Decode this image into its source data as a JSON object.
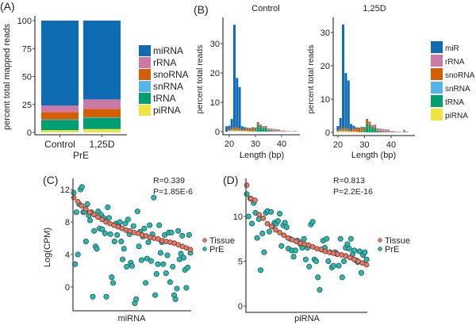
{
  "colors": {
    "miRNA": "#0f6cb3",
    "rRNA": "#cc79a7",
    "snoRNA": "#d55e00",
    "snRNA": "#56b4e9",
    "tRNA": "#009e73",
    "piRNA": "#f0e442",
    "Tissue": "#e07a68",
    "PrE": "#2bb6ae"
  },
  "chart_data": [
    {
      "panel": "(A)",
      "type": "bar",
      "stacked": true,
      "categories": [
        "Control",
        "1,25D"
      ],
      "xlabel": "PrE",
      "ylabel": "percent total mapped reads",
      "ylim": [
        0,
        100
      ],
      "yticks": [
        "0",
        "25",
        "50",
        "75",
        "100"
      ],
      "legend_position": "right",
      "series": [
        {
          "name": "piRNA",
          "values": [
            2,
            3
          ]
        },
        {
          "name": "tRNA",
          "values": [
            9,
            10
          ]
        },
        {
          "name": "snRNA",
          "values": [
            0.5,
            0.5
          ]
        },
        {
          "name": "snoRNA",
          "values": [
            6.5,
            7.5
          ]
        },
        {
          "name": "rRNA",
          "values": [
            6,
            8.5
          ]
        },
        {
          "name": "miRNA",
          "values": [
            76,
            70.5
          ]
        }
      ],
      "legend_order": [
        "miRNA",
        "rRNA",
        "snoRNA",
        "snRNA",
        "tRNA",
        "piRNA"
      ]
    },
    {
      "panel": "(B)",
      "title": "Control",
      "type": "bar",
      "stacked": true,
      "xlabel": "Length (bp)",
      "ylabel": "percent total reads",
      "xticks": [
        "20",
        "30",
        "40"
      ],
      "yticks": [
        "0",
        "10",
        "20",
        "30"
      ],
      "x": [
        19,
        20,
        21,
        22,
        23,
        24,
        25,
        26,
        27,
        28,
        29,
        30,
        31,
        32,
        33,
        34,
        35,
        36,
        37,
        38,
        39,
        40,
        41,
        42,
        43,
        44,
        45,
        46
      ],
      "series": [
        {
          "name": "piRNA",
          "values": [
            0,
            0.2,
            0.3,
            0.3,
            0.3,
            0.2,
            0.2,
            0.2,
            0.2,
            0.1,
            0.1,
            0.1,
            0,
            0,
            0,
            0,
            0,
            0,
            0,
            0,
            0,
            0,
            0,
            0,
            0,
            0,
            0,
            0
          ]
        },
        {
          "name": "tRNA",
          "values": [
            0,
            0,
            0,
            0,
            0,
            0,
            0,
            0,
            0,
            0,
            0.3,
            0.5,
            2.2,
            1.5,
            1,
            1.2,
            0.3,
            0.2,
            0.1,
            0.1,
            0.1,
            0,
            0,
            0,
            0,
            0,
            0,
            0
          ]
        },
        {
          "name": "snRNA",
          "values": [
            0,
            0.2,
            0.3,
            0.3,
            0.2,
            0.2,
            0.1,
            0.1,
            0,
            0,
            0,
            0,
            0,
            0,
            0,
            0,
            0,
            0,
            0,
            0,
            0,
            0,
            0,
            0,
            0,
            0,
            0,
            0
          ]
        },
        {
          "name": "snoRNA",
          "values": [
            0,
            0.3,
            0.5,
            0.8,
            0.8,
            0.6,
            0.3,
            0.6,
            0.8,
            0.8,
            0.9,
            0.6,
            0.8,
            0.5,
            0.4,
            0.3,
            0.3,
            0.2,
            0.2,
            0.1,
            0.1,
            0.1,
            0.1,
            0,
            0,
            0,
            0,
            0
          ]
        },
        {
          "name": "rRNA",
          "values": [
            0,
            0,
            0,
            0,
            0,
            0,
            0,
            0,
            0,
            0,
            0,
            0,
            0,
            0.2,
            0.2,
            0.2,
            0.4,
            0.5,
            0.5,
            0.5,
            0.4,
            0.3,
            0.3,
            0.2,
            0.2,
            0.1,
            0.3,
            0.1
          ]
        },
        {
          "name": "miR",
          "values": [
            1.8,
            1.3,
            3.2,
            35,
            17,
            14.2,
            1.2,
            0.6,
            0.3,
            0.3,
            0.2,
            0.2,
            0.2,
            0.2,
            0.2,
            0.2,
            0.1,
            0.1,
            0.1,
            0.1,
            0.1,
            0,
            0,
            0,
            0,
            0,
            0,
            0
          ]
        }
      ]
    },
    {
      "panel": "",
      "title": "1,25D",
      "type": "bar",
      "stacked": true,
      "xlabel": "Length (bp)",
      "ylabel": "percent total reads",
      "xticks": [
        "20",
        "30",
        "40"
      ],
      "yticks": [
        "0",
        "10",
        "20",
        "30"
      ],
      "legend_position": "right",
      "legend_order": [
        "miR",
        "rRNA",
        "snoRNA",
        "snRNA",
        "tRNA",
        "piRNA"
      ],
      "x": [
        19,
        20,
        21,
        22,
        23,
        24,
        25,
        26,
        27,
        28,
        29,
        30,
        31,
        32,
        33,
        34,
        35,
        36,
        37,
        38,
        39,
        40,
        41,
        42,
        43,
        44,
        45,
        46
      ],
      "series": [
        {
          "name": "piRNA",
          "values": [
            0,
            0.2,
            0.3,
            0.3,
            0.3,
            0.2,
            0.2,
            0.2,
            0.2,
            0.1,
            0.1,
            0.1,
            0,
            0,
            0,
            0,
            0,
            0,
            0,
            0,
            0,
            0,
            0,
            0,
            0,
            0,
            0,
            0
          ]
        },
        {
          "name": "tRNA",
          "values": [
            0,
            0,
            0,
            0,
            0,
            0,
            0,
            0,
            0,
            0,
            0.4,
            0.6,
            2.6,
            2,
            1.2,
            1.5,
            0.3,
            0.2,
            0.1,
            0.1,
            0.1,
            0,
            0,
            0,
            0,
            0,
            0,
            0
          ]
        },
        {
          "name": "snRNA",
          "values": [
            0,
            0.2,
            0.3,
            0.3,
            0.2,
            0.2,
            0.1,
            0.1,
            0,
            0,
            0,
            0,
            0,
            0,
            0,
            0,
            0,
            0,
            0,
            0,
            0,
            0,
            0,
            0,
            0,
            0,
            0,
            0
          ]
        },
        {
          "name": "snoRNA",
          "values": [
            0,
            0.3,
            0.5,
            0.8,
            0.8,
            0.6,
            0.4,
            0.8,
            1,
            1,
            1,
            0.7,
            1.2,
            0.8,
            0.5,
            0.4,
            0.3,
            0.2,
            0.2,
            0.1,
            0.1,
            0.1,
            0.1,
            0,
            0,
            0,
            0,
            0
          ]
        },
        {
          "name": "rRNA",
          "values": [
            0,
            0,
            0,
            0,
            0,
            0,
            0,
            0,
            0,
            0,
            0,
            0,
            0,
            0.2,
            0.2,
            0.2,
            0.5,
            0.6,
            0.6,
            0.6,
            0.5,
            0.3,
            0.3,
            0.2,
            0.2,
            0.1,
            0.8,
            0.3
          ]
        },
        {
          "name": "miR",
          "values": [
            0,
            1.2,
            3.2,
            31,
            16.5,
            14.6,
            1.8,
            0.9,
            0.3,
            0.3,
            0.2,
            0.2,
            0.2,
            0.2,
            0.2,
            0.2,
            0.1,
            0.1,
            0.1,
            0.1,
            0.1,
            0,
            0,
            0,
            0,
            0,
            0,
            0
          ]
        }
      ]
    },
    {
      "panel": "(C)",
      "type": "scatter",
      "xlabel": "miRNA",
      "ylabel": "Log(CPM)",
      "ylim": [
        -2.9,
        13.4
      ],
      "yticks": [
        "0",
        "4",
        "8",
        "12"
      ],
      "annotation": [
        "R=0.339",
        "P=1.85E-6"
      ],
      "legend_position": "right",
      "series": [
        {
          "name": "Tissue",
          "y": [
            11,
            10.5,
            10,
            9.6,
            9.2,
            8.9,
            8.6,
            8.3,
            8.0,
            7.8,
            7.6,
            7.4,
            7.2,
            7.0,
            6.9,
            6.7,
            6.6,
            6.4,
            6.3,
            6.1,
            6.0,
            5.9,
            5.7,
            5.6,
            5.5,
            5.4,
            5.2,
            5.0,
            4.8,
            4.6
          ]
        },
        {
          "name": "PrE",
          "y": [
            11.6,
            2.8,
            9.2,
            4,
            10.2,
            12,
            12.3,
            9.2,
            9.3,
            5.6,
            10.2,
            8.8,
            8.2,
            9.2,
            -1.2,
            6.9,
            5,
            4.7,
            9.3,
            7.2,
            8.9,
            7.1,
            8.5,
            6.6,
            -1.2,
            9.8,
            8.5,
            6.5,
            1.2,
            0.5,
            5.6,
            7.8,
            6.4,
            7.6,
            8,
            5.6,
            3.4,
            4.7,
            7.8,
            2.5,
            8.3,
            6.5,
            3,
            2.6,
            7.5,
            -2,
            -1.5,
            9.3,
            5,
            6.8,
            3.3,
            6.2,
            7.2,
            0.5,
            3.5,
            5.5,
            7.6,
            3.2,
            6.5,
            11,
            -1,
            1.6,
            2.8,
            7.6,
            4.2,
            5.5,
            2.8,
            6.4,
            1.7,
            3.9,
            6.7,
            0.6,
            6.7,
            2.5,
            -1,
            -1.5,
            -0.2,
            6.9,
            3.4,
            4.1,
            6.3,
            3.6,
            2.1,
            -0.1,
            2.4,
            6.4,
            4.2
          ]
        }
      ]
    },
    {
      "panel": "(D)",
      "type": "scatter",
      "xlabel": "piRNA",
      "ylabel": "",
      "ylim": [
        -0.7,
        13.8
      ],
      "yticks": [
        "0",
        "5",
        "10"
      ],
      "annotation": [
        "R=0.813",
        "P=2.2E-16"
      ],
      "legend_position": "right",
      "series": [
        {
          "name": "Tissue",
          "y": [
            13.5,
            12,
            11.8,
            10.2,
            9.8,
            9.2,
            8.9,
            8.5,
            8.2,
            7.9,
            7.6,
            7.4,
            7.2,
            7.0,
            6.9,
            6.8,
            6.6,
            6.4,
            6.3,
            6.1,
            6.0,
            5.9,
            5.8,
            5.7,
            5.6,
            5.4,
            5.2,
            5.0,
            4.8,
            4.6
          ]
        },
        {
          "name": "PrE",
          "y": [
            12.5,
            10,
            12,
            9.2,
            11.5,
            10.4,
            7.6,
            9.7,
            4,
            8.1,
            6,
            10.4,
            10.6,
            8.3,
            10.5,
            8.9,
            9.3,
            9.2,
            9.5,
            10.3,
            6.7,
            9,
            9.3,
            8.8,
            6.4,
            7.5,
            6.2,
            5.5,
            6.2,
            7.3,
            7.2,
            6.9,
            6.5,
            7.5,
            5.2,
            6.5,
            4.4,
            9.1,
            9.4,
            5.2,
            5,
            3.2,
            1.8,
            6.3,
            7.3,
            6.5,
            7.5,
            5,
            6,
            4.3,
            4.5,
            6,
            5.8,
            4.5,
            7.5,
            3.2,
            5,
            6.5,
            6.9,
            6.4,
            7.5,
            5.8,
            6.2,
            5.1,
            4.9,
            6.1,
            3.7,
            5.7,
            6,
            5.2
          ]
        }
      ]
    }
  ]
}
